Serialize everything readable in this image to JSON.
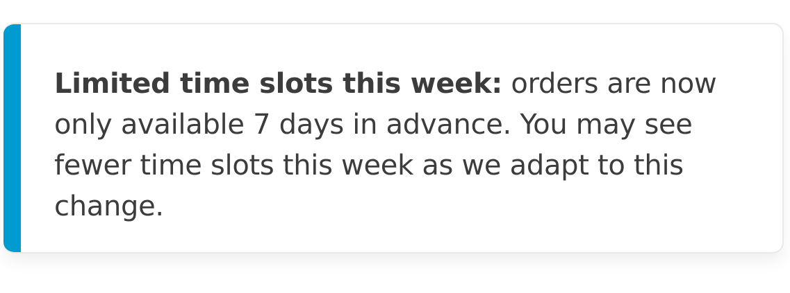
{
  "notice": {
    "title": "Limited time slots this week:",
    "message": "orders are now only available 7 days in advance. You may see fewer time slots this week as we adapt to this change.",
    "accent_color": "#009bd1"
  }
}
